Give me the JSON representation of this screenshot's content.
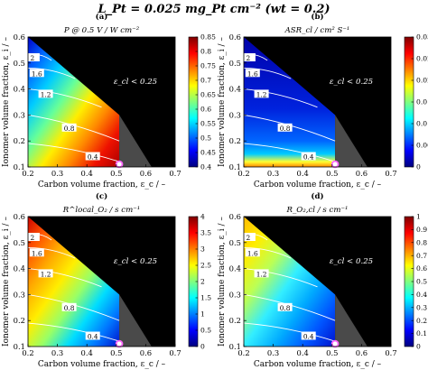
{
  "figure_title": "L_Pt = 0.025 mg_Pt cm⁻² (wt = 0.2)",
  "colors": {
    "background_region": "#000000",
    "grey_region": "#4a4a4a",
    "point_marker": "#ff66ff",
    "contour_line": "#ffffff"
  },
  "chart_data": [
    {
      "panel": "(a)",
      "type": "heatmap",
      "title": "P @ 0.5 V / W cm⁻²",
      "xlabel": "Carbon volume fraction, ε_c / –",
      "ylabel": "Ionomer volume fraction, ε_i / –",
      "xlim": [
        0.2,
        0.7
      ],
      "ylim": [
        0.1,
        0.6
      ],
      "xticks": [
        "0.2",
        "0.3",
        "0.4",
        "0.5",
        "0.6",
        "0.7"
      ],
      "yticks": [
        "0.1",
        "0.2",
        "0.3",
        "0.4",
        "0.5",
        "0.6"
      ],
      "colorbar_range": [
        0.4,
        0.85
      ],
      "colorbar_ticks": [
        "0.4",
        "0.45",
        "0.5",
        "0.55",
        "0.6",
        "0.65",
        "0.7",
        "0.75",
        "0.8",
        "0.85"
      ],
      "contour_labels": [
        "0.4",
        "0.8",
        "1.2",
        "1.6",
        "2"
      ],
      "annotation": "ε_cl < 0.25",
      "gradient": "descend",
      "marker": {
        "x": 0.51,
        "y": 0.1
      }
    },
    {
      "panel": "(b)",
      "type": "heatmap",
      "title": "ASR_cl / cm² S⁻¹",
      "xlabel": "Carbon volume fraction, ε_c / –",
      "ylabel": "Ionomer volume fraction, ε_i / –",
      "xlim": [
        0.2,
        0.7
      ],
      "ylim": [
        0.1,
        0.6
      ],
      "xticks": [
        "0.2",
        "0.3",
        "0.4",
        "0.5",
        "0.6",
        "0.7"
      ],
      "yticks": [
        "0.1",
        "0.2",
        "0.3",
        "0.4",
        "0.5",
        "0.6"
      ],
      "colorbar_range": [
        0,
        0.03
      ],
      "colorbar_ticks": [
        "0",
        "0.005",
        "0.01",
        "0.015",
        "0.02",
        "0.025",
        "0.03"
      ],
      "contour_labels": [
        "0.4",
        "0.8",
        "1.2",
        "1.6",
        "2"
      ],
      "annotation": "ε_cl < 0.25",
      "gradient": "asr",
      "marker": {
        "x": 0.51,
        "y": 0.1
      }
    },
    {
      "panel": "(c)",
      "type": "heatmap",
      "title": "R^local_O₂ / s cm⁻¹",
      "xlabel": "Carbon volume fraction, ε_c / –",
      "ylabel": "Ionomer volume fraction, ε_i / –",
      "xlim": [
        0.2,
        0.7
      ],
      "ylim": [
        0.1,
        0.6
      ],
      "xticks": [
        "0.2",
        "0.3",
        "0.4",
        "0.5",
        "0.6",
        "0.7"
      ],
      "yticks": [
        "0.1",
        "0.2",
        "0.3",
        "0.4",
        "0.5",
        "0.6"
      ],
      "colorbar_range": [
        0,
        4
      ],
      "colorbar_ticks": [
        "0",
        "0.5",
        "1",
        "1.5",
        "2",
        "2.5",
        "3",
        "3.5",
        "4"
      ],
      "contour_labels": [
        "0.4",
        "0.8",
        "1.2",
        "1.6",
        "2"
      ],
      "annotation": "ε_cl < 0.25",
      "gradient": "ascend",
      "marker": {
        "x": 0.51,
        "y": 0.1
      }
    },
    {
      "panel": "(d)",
      "type": "heatmap",
      "title": "R_O₂,cl / s cm⁻¹",
      "xlabel": "Carbon volume fraction, ε_c / –",
      "ylabel": "Ionomer volume fraction, ε_i / –",
      "xlim": [
        0.2,
        0.7
      ],
      "ylim": [
        0.1,
        0.6
      ],
      "xticks": [
        "0.2",
        "0.3",
        "0.4",
        "0.5",
        "0.6",
        "0.7"
      ],
      "yticks": [
        "0.1",
        "0.2",
        "0.3",
        "0.4",
        "0.5",
        "0.6"
      ],
      "colorbar_range": [
        0,
        1
      ],
      "colorbar_ticks": [
        "0",
        "0.1",
        "0.2",
        "0.3",
        "0.4",
        "0.5",
        "0.6",
        "0.7",
        "0.8",
        "0.9",
        "1"
      ],
      "contour_labels": [
        "0.4",
        "0.8",
        "1.2",
        "1.6",
        "2"
      ],
      "annotation": "ε_cl < 0.25",
      "gradient": "ascend_soft",
      "marker": {
        "x": 0.51,
        "y": 0.1
      }
    }
  ]
}
